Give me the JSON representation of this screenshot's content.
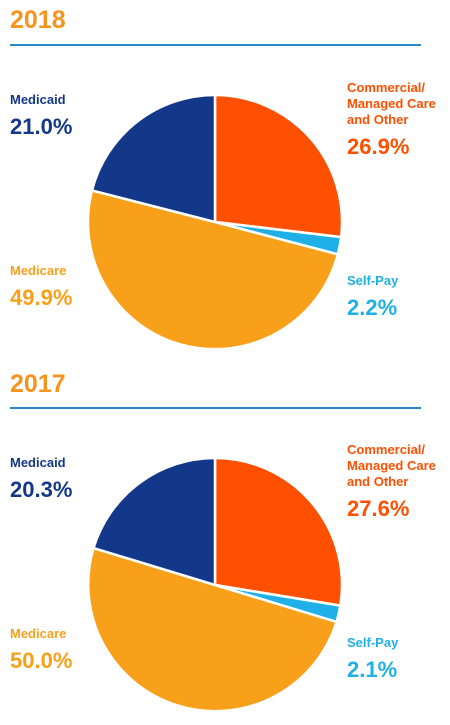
{
  "chart_data": [
    {
      "type": "pie",
      "title": "2018",
      "slices": [
        {
          "name": "Commercial/\nManaged Care\nand Other",
          "label": "26.9%",
          "value": 26.9,
          "color": "#ff4f00"
        },
        {
          "name": "Self-Pay",
          "label": "2.2%",
          "value": 2.2,
          "color": "#1eb0e6"
        },
        {
          "name": "Medicare",
          "label": "49.9%",
          "value": 49.9,
          "color": "#f9a01b"
        },
        {
          "name": "Medicaid",
          "label": "21.0%",
          "value": 21.0,
          "color": "#13388a"
        }
      ]
    },
    {
      "type": "pie",
      "title": "2017",
      "slices": [
        {
          "name": "Commercial/\nManaged Care\nand Other",
          "label": "27.6%",
          "value": 27.6,
          "color": "#ff4f00"
        },
        {
          "name": "Self-Pay",
          "label": "2.1%",
          "value": 2.1,
          "color": "#1eb0e6"
        },
        {
          "name": "Medicare",
          "label": "50.0%",
          "value": 50.0,
          "color": "#f9a01b"
        },
        {
          "name": "Medicaid",
          "label": "20.3%",
          "value": 20.3,
          "color": "#13388a"
        }
      ]
    }
  ]
}
